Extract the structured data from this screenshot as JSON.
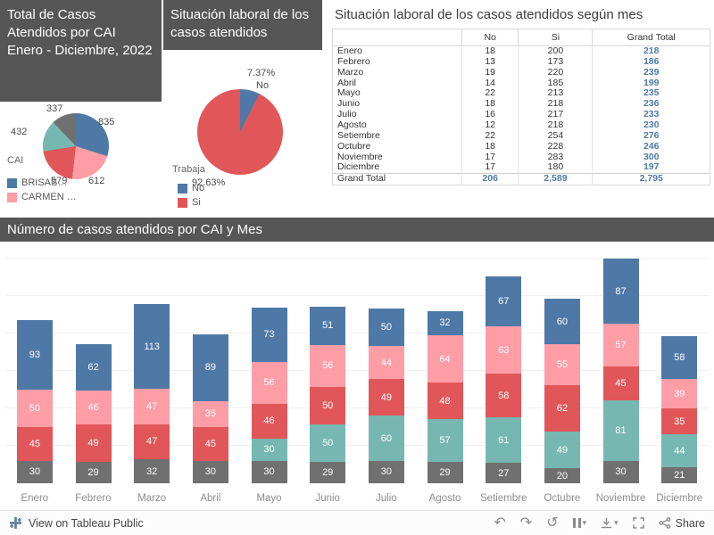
{
  "panels": {
    "total_cases": {
      "title": "Total de Casos Atendidos por CAI Enero - Diciembre, 2022",
      "legend_title": "CAI",
      "legend": [
        {
          "label": "BRISAS…",
          "color": "#4e79a7"
        },
        {
          "label": "CARMEN …",
          "color": "#ff9da7"
        }
      ]
    },
    "work_situation": {
      "title": "Situación laboral de los casos atendidos",
      "legend_title": "Trabaja",
      "legend": [
        {
          "label": "No",
          "color": "#4e79a7"
        },
        {
          "label": "Si",
          "color": "#e15759"
        }
      ]
    },
    "monthly_table_title": "Situación laboral de los casos atendidos según mes",
    "bar_banner": "Número de casos atendidos por CAI y Mes"
  },
  "footer": {
    "view_on": "View on Tableau Public",
    "share": "Share"
  },
  "chart_data": [
    {
      "id": "pie-total-by-cai",
      "type": "pie",
      "title": "Total de Casos Atendidos por CAI Enero - Diciembre, 2022",
      "legend_title": "CAI",
      "legend_position": "bottom-left",
      "slices": [
        {
          "name": "BRISAS…",
          "value": 835,
          "color": "#4e79a7"
        },
        {
          "name": "CARMEN …",
          "value": 612,
          "color": "#ff9da7"
        },
        {
          "value": 579,
          "color": "#e15759"
        },
        {
          "value": 432,
          "color": "#76b7b2"
        },
        {
          "value": 337,
          "color": "#707070"
        }
      ]
    },
    {
      "id": "pie-work-situation",
      "type": "pie",
      "title": "Situación laboral de los casos atendidos",
      "legend_title": "Trabaja",
      "slices": [
        {
          "name": "No",
          "value": 7.37,
          "pct_label": "7.37%",
          "color": "#4e79a7"
        },
        {
          "name": "Si",
          "value": 92.63,
          "pct_label": "92.63%",
          "color": "#e15759"
        }
      ]
    },
    {
      "id": "table-work-by-month",
      "type": "table",
      "title": "Situación laboral de los casos atendidos según mes",
      "columns": [
        "",
        "No",
        "Si",
        "Grand Total"
      ],
      "rows": [
        [
          "Enero",
          "18",
          "200",
          "218"
        ],
        [
          "Febrero",
          "13",
          "173",
          "186"
        ],
        [
          "Marzo",
          "19",
          "220",
          "239"
        ],
        [
          "Abril",
          "14",
          "185",
          "199"
        ],
        [
          "Mayo",
          "22",
          "213",
          "235"
        ],
        [
          "Junio",
          "18",
          "218",
          "236"
        ],
        [
          "Julio",
          "16",
          "217",
          "233"
        ],
        [
          "Agosto",
          "12",
          "218",
          "230"
        ],
        [
          "Setiembre",
          "22",
          "254",
          "276"
        ],
        [
          "Octubre",
          "18",
          "228",
          "246"
        ],
        [
          "Noviembre",
          "17",
          "283",
          "300"
        ],
        [
          "Diciembre",
          "17",
          "180",
          "197"
        ],
        [
          "Grand Total",
          "206",
          "2,589",
          "2,795"
        ]
      ]
    },
    {
      "id": "stacked-bar-cases-by-cai-month",
      "type": "bar",
      "stacked": true,
      "title": "Número de casos atendidos por CAI y Mes",
      "categories": [
        "Enero",
        "Febrero",
        "Marzo",
        "Abril",
        "Mayo",
        "Junio",
        "Julio",
        "Agosto",
        "Setiembre",
        "Octubre",
        "Noviembre",
        "Diciembre"
      ],
      "series": [
        {
          "key": "gray",
          "color": "#707070",
          "values": [
            30,
            29,
            32,
            30,
            30,
            29,
            30,
            29,
            27,
            20,
            30,
            21
          ]
        },
        {
          "key": "teal",
          "color": "#76b7b2",
          "values": [
            0,
            0,
            0,
            0,
            30,
            50,
            60,
            57,
            61,
            49,
            81,
            44
          ]
        },
        {
          "key": "red",
          "color": "#e15759",
          "values": [
            45,
            49,
            47,
            45,
            46,
            50,
            49,
            48,
            58,
            62,
            45,
            35
          ]
        },
        {
          "key": "pink",
          "legend_label": "CARMEN …",
          "color": "#ff9da7",
          "values": [
            50,
            46,
            47,
            35,
            56,
            56,
            44,
            64,
            63,
            55,
            57,
            39
          ]
        },
        {
          "key": "blue",
          "legend_label": "BRISAS…",
          "color": "#4e79a7",
          "values": [
            93,
            62,
            113,
            89,
            73,
            51,
            50,
            32,
            67,
            60,
            87,
            58
          ]
        }
      ],
      "ylim": [
        0,
        300
      ],
      "grid": true,
      "legend_position": "none"
    }
  ]
}
